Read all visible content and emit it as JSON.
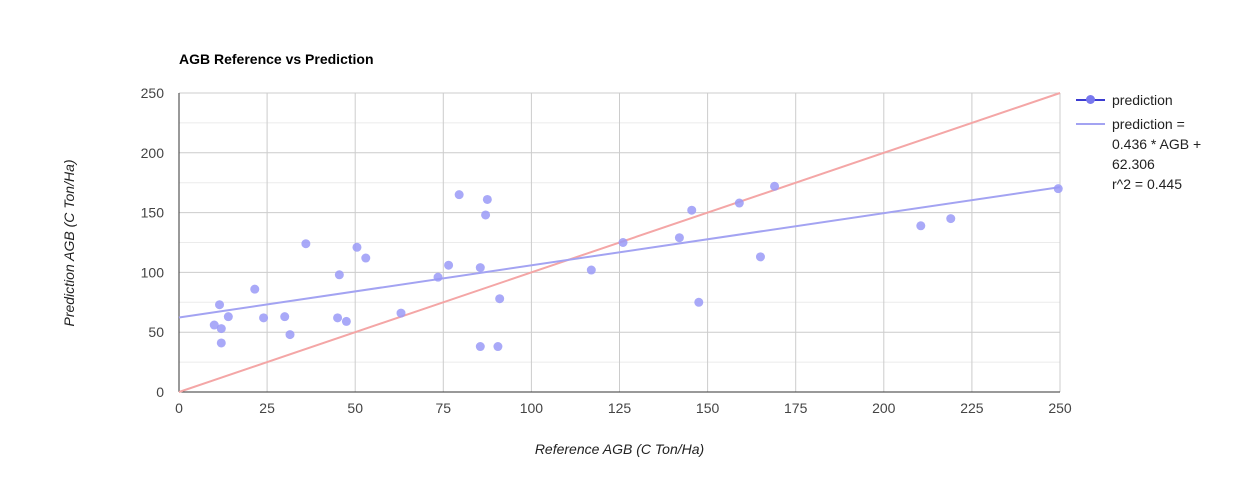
{
  "chart_data": {
    "type": "scatter",
    "title": "AGB Reference vs Prediction",
    "xlabel": "Reference AGB (C Ton/Ha)",
    "ylabel": "Prediction AGB (C Ton/Ha)",
    "xlim": [
      0,
      250
    ],
    "ylim": [
      0,
      250
    ],
    "x_ticks": [
      "0",
      "25",
      "50",
      "75",
      "100",
      "125",
      "150",
      "175",
      "200",
      "225",
      "250"
    ],
    "y_ticks": [
      "0",
      "50",
      "100",
      "150",
      "200",
      "250"
    ],
    "grid": true,
    "legend_position": "right",
    "series": [
      {
        "name": "prediction",
        "color": "#9a9af7",
        "points": [
          [
            10,
            56
          ],
          [
            11.5,
            73
          ],
          [
            12,
            53
          ],
          [
            12,
            41
          ],
          [
            14,
            63
          ],
          [
            21.5,
            86
          ],
          [
            24,
            62
          ],
          [
            30,
            63
          ],
          [
            31.5,
            48
          ],
          [
            36,
            124
          ],
          [
            45,
            62
          ],
          [
            45.5,
            98
          ],
          [
            47.5,
            59
          ],
          [
            50.5,
            121
          ],
          [
            53,
            112
          ],
          [
            63,
            66
          ],
          [
            73.5,
            96
          ],
          [
            76.5,
            106
          ],
          [
            79.5,
            165
          ],
          [
            85.5,
            104
          ],
          [
            85.5,
            38
          ],
          [
            87,
            148
          ],
          [
            87.5,
            161
          ],
          [
            90.5,
            38
          ],
          [
            91,
            78
          ],
          [
            117,
            102
          ],
          [
            126,
            125
          ],
          [
            142,
            129
          ],
          [
            145.5,
            152
          ],
          [
            147.5,
            75
          ],
          [
            159,
            158
          ],
          [
            165,
            113
          ],
          [
            169,
            172
          ],
          [
            210.5,
            139
          ],
          [
            219,
            145
          ],
          [
            249.5,
            170
          ]
        ]
      }
    ],
    "trendline": {
      "label": "prediction =\n0.436 * AGB +\n62.306\nr^2 = 0.445",
      "slope": 0.436,
      "intercept": 62.306,
      "r2": 0.445,
      "color": "#a3a3f2"
    },
    "reference_line": {
      "slope": 1,
      "intercept": 0,
      "color": "#f4a6a6"
    }
  }
}
